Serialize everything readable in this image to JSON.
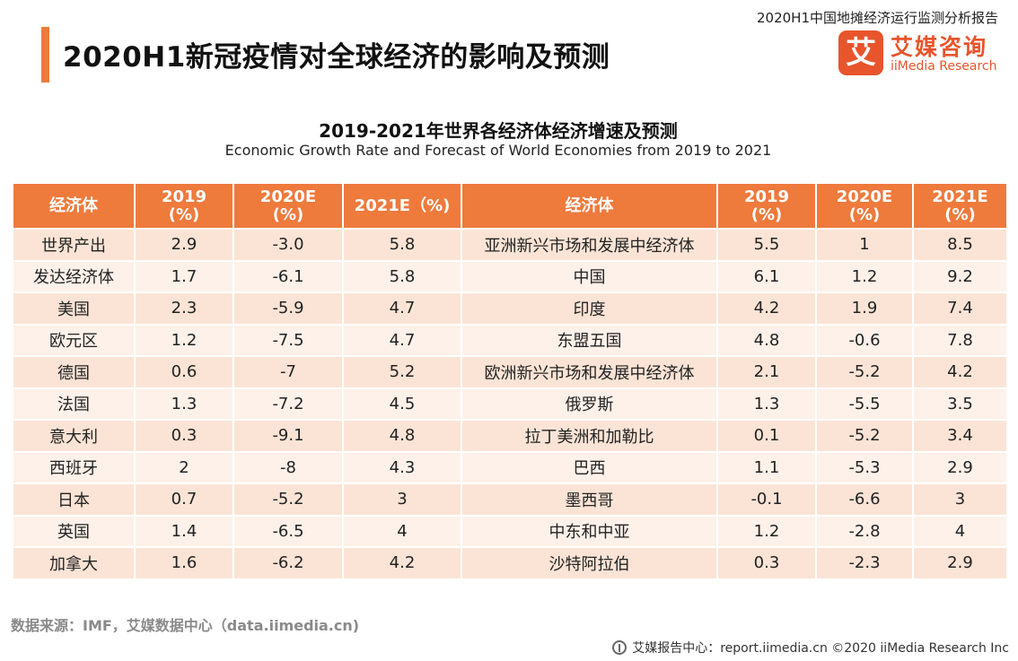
{
  "header": {
    "report_name": "2020H1中国地摊经济运行监测分析报告",
    "title": "2020H1新冠疫情对全球经济的影响及预测"
  },
  "logo": {
    "mark": "艾",
    "cn": "艾媒咨询",
    "en": "iiMedia Research"
  },
  "table": {
    "title": "2019-2021年世界各经济体经济增速及预测",
    "subtitle": "Economic Growth Rate and Forecast of World Economies from 2019 to 2021",
    "headers": [
      "经济体",
      "2019\n(%)",
      "2020E\n(%)",
      "2021E（%)",
      "经济体",
      "2019\n(%)",
      "2020E\n(%)",
      "2021E\n(%)"
    ],
    "rows": [
      [
        "世界产出",
        "2.9",
        "-3.0",
        "5.8",
        "亚洲新兴市场和发展中经济体",
        "5.5",
        "1",
        "8.5"
      ],
      [
        "发达经济体",
        "1.7",
        "-6.1",
        "5.8",
        "中国",
        "6.1",
        "1.2",
        "9.2"
      ],
      [
        "美国",
        "2.3",
        "-5.9",
        "4.7",
        "印度",
        "4.2",
        "1.9",
        "7.4"
      ],
      [
        "欧元区",
        "1.2",
        "-7.5",
        "4.7",
        "东盟五国",
        "4.8",
        "-0.6",
        "7.8"
      ],
      [
        "德国",
        "0.6",
        "-7",
        "5.2",
        "欧洲新兴市场和发展中经济体",
        "2.1",
        "-5.2",
        "4.2"
      ],
      [
        "法国",
        "1.3",
        "-7.2",
        "4.5",
        "俄罗斯",
        "1.3",
        "-5.5",
        "3.5"
      ],
      [
        "意大利",
        "0.3",
        "-9.1",
        "4.8",
        "拉丁美洲和加勒比",
        "0.1",
        "-5.2",
        "3.4"
      ],
      [
        "西班牙",
        "2",
        "-8",
        "4.3",
        "巴西",
        "1.1",
        "-5.3",
        "2.9"
      ],
      [
        "日本",
        "0.7",
        "-5.2",
        "3",
        "墨西哥",
        "-0.1",
        "-6.6",
        "3"
      ],
      [
        "英国",
        "1.4",
        "-6.5",
        "4",
        "中东和中亚",
        "1.2",
        "-2.8",
        "4"
      ],
      [
        "加拿大",
        "1.6",
        "-6.2",
        "4.2",
        "沙特阿拉伯",
        "0.3",
        "-2.3",
        "2.9"
      ]
    ]
  },
  "footer": {
    "source": "数据来源：IMF，艾媒数据中心（data.iimedia.cn)",
    "credit": "艾媒报告中心：report.iimedia.cn  ©2020  iiMedia Research  Inc"
  },
  "colors": {
    "accent": "#ee7a3c",
    "brand": "#e8542b",
    "row_odd": "#fbe4d6",
    "row_even": "#fdf1ea"
  },
  "icons": {
    "footer": "globe-icon"
  }
}
